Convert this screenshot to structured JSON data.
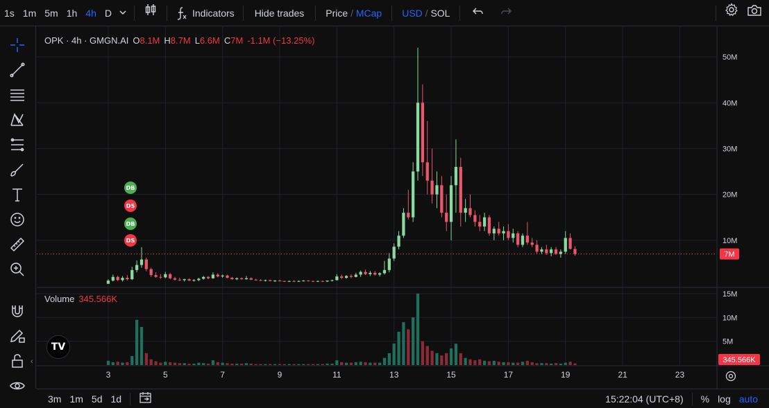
{
  "toolbar": {
    "intervals": [
      "1s",
      "1m",
      "5m",
      "1h",
      "4h",
      "D"
    ],
    "active_interval": "4h",
    "indicators_label": "Indicators",
    "hide_trades_label": "Hide trades",
    "price_label": "Price",
    "price_sep": "/",
    "mcap_label": "MCap",
    "usd_label": "USD",
    "currency_sep": "/",
    "sol_label": "SOL"
  },
  "legend": {
    "symbol": "OPK · 4h · GMGN.AI",
    "o_label": "O",
    "o_value": "8.1M",
    "h_label": "H",
    "h_value": "8.7M",
    "l_label": "L",
    "l_value": "6.6M",
    "c_label": "C",
    "c_value": "7M",
    "change": "-1.1M (−13.25%)"
  },
  "volume_legend": {
    "label": "Volume",
    "value": "345.566K"
  },
  "markers": [
    {
      "label": "DB",
      "color": "#4caf50"
    },
    {
      "label": "DS",
      "color": "#f23645"
    },
    {
      "label": "DB",
      "color": "#4caf50"
    },
    {
      "label": "DS",
      "color": "#f23645"
    }
  ],
  "tv_logo": "TV",
  "bottombar": {
    "ranges": [
      "3m",
      "1m",
      "5d",
      "1d"
    ],
    "time": "15:22:04 (UTC+8)",
    "percent_label": "%",
    "log_label": "log",
    "auto_label": "auto"
  },
  "colors": {
    "up": "#26a69a",
    "up_candle": "#89d9a0",
    "down": "#f23645",
    "down_candle": "#e8576b",
    "grid": "#1e222d",
    "text": "#d1d4dc"
  },
  "chart_data": {
    "type": "candlestick",
    "price_axis": {
      "ticks": [
        10,
        20,
        30,
        40,
        50
      ],
      "tick_labels": [
        "10M",
        "20M",
        "30M",
        "40M",
        "50M"
      ],
      "range": [
        0,
        55
      ],
      "current_price_label": "7M",
      "current_price": 7
    },
    "volume_axis": {
      "ticks": [
        5,
        10,
        15
      ],
      "tick_labels": [
        "5M",
        "10M",
        "15M"
      ],
      "range": [
        0,
        16
      ],
      "current_volume_label": "345.566K"
    },
    "x_axis": {
      "tick_labels": [
        "3",
        "5",
        "7",
        "9",
        "11",
        "13",
        "15",
        "17",
        "19",
        "21",
        "23"
      ],
      "tick_days": [
        3,
        5,
        7,
        9,
        11,
        13,
        15,
        17,
        19,
        21,
        23
      ],
      "range_days": [
        0.5,
        24.3
      ]
    },
    "candles_per_day": 6,
    "start_day": 3.0,
    "candles": [
      [
        0.5,
        1.5,
        0.5,
        1.2,
        0.9
      ],
      [
        1.2,
        2.5,
        1.0,
        2.0,
        0.6
      ],
      [
        2.0,
        2.3,
        1.1,
        1.3,
        0.7
      ],
      [
        1.3,
        2.2,
        1.0,
        1.8,
        0.5
      ],
      [
        1.8,
        2.4,
        1.2,
        1.5,
        0.6
      ],
      [
        1.5,
        4.2,
        1.3,
        3.5,
        1.9
      ],
      [
        3.5,
        5.6,
        3.0,
        4.6,
        9.5
      ],
      [
        4.6,
        8.5,
        4.0,
        5.8,
        8.0
      ],
      [
        5.8,
        6.2,
        3.2,
        3.7,
        2.5
      ],
      [
        3.7,
        4.0,
        2.0,
        2.4,
        1.2
      ],
      [
        2.4,
        3.0,
        1.8,
        2.0,
        0.8
      ],
      [
        2.0,
        2.6,
        1.6,
        1.9,
        0.5
      ],
      [
        1.9,
        3.1,
        1.7,
        2.6,
        0.7
      ],
      [
        2.6,
        2.9,
        1.5,
        1.7,
        0.6
      ],
      [
        1.7,
        2.0,
        1.2,
        1.4,
        0.5
      ],
      [
        1.4,
        1.8,
        1.1,
        1.3,
        0.4
      ],
      [
        1.3,
        1.6,
        1.0,
        1.5,
        0.4
      ],
      [
        1.5,
        1.7,
        1.1,
        1.2,
        0.3
      ],
      [
        1.2,
        1.5,
        1.0,
        1.3,
        0.3
      ],
      [
        1.3,
        1.8,
        1.1,
        1.6,
        0.5
      ],
      [
        1.6,
        2.2,
        1.4,
        2.0,
        0.4
      ],
      [
        2.0,
        2.2,
        1.5,
        1.7,
        0.3
      ],
      [
        1.7,
        3.0,
        1.6,
        2.5,
        1.0
      ],
      [
        2.5,
        2.8,
        1.9,
        2.1,
        0.6
      ],
      [
        2.1,
        2.5,
        1.8,
        2.3,
        0.5
      ],
      [
        2.3,
        2.5,
        1.7,
        1.8,
        0.4
      ],
      [
        1.8,
        2.0,
        1.4,
        1.5,
        0.3
      ],
      [
        1.5,
        1.9,
        1.3,
        1.7,
        0.3
      ],
      [
        1.7,
        1.9,
        1.4,
        1.5,
        0.3
      ],
      [
        1.5,
        2.2,
        1.4,
        1.7,
        0.4
      ],
      [
        1.7,
        1.9,
        1.3,
        1.4,
        0.3
      ],
      [
        1.4,
        1.6,
        1.2,
        1.3,
        0.2
      ],
      [
        1.3,
        1.5,
        1.1,
        1.2,
        0.2
      ],
      [
        1.2,
        1.4,
        1.0,
        1.3,
        0.2
      ],
      [
        1.3,
        1.4,
        1.0,
        1.1,
        0.2
      ],
      [
        1.1,
        1.3,
        0.9,
        1.2,
        0.2
      ],
      [
        1.2,
        1.4,
        1.0,
        1.1,
        0.2
      ],
      [
        1.1,
        1.2,
        0.9,
        1.0,
        0.2
      ],
      [
        1.0,
        1.2,
        0.9,
        1.1,
        0.2
      ],
      [
        1.1,
        1.3,
        0.9,
        1.0,
        0.2
      ],
      [
        1.0,
        1.2,
        0.9,
        1.1,
        0.2
      ],
      [
        1.1,
        1.3,
        1.0,
        1.2,
        0.2
      ],
      [
        1.2,
        1.3,
        1.0,
        1.1,
        0.2
      ],
      [
        1.1,
        1.2,
        0.9,
        1.0,
        0.2
      ],
      [
        1.0,
        1.2,
        0.9,
        1.1,
        0.2
      ],
      [
        1.1,
        1.2,
        0.9,
        1.0,
        0.2
      ],
      [
        1.0,
        1.2,
        0.9,
        1.2,
        0.3
      ],
      [
        1.2,
        1.4,
        1.0,
        1.3,
        0.3
      ],
      [
        1.3,
        2.6,
        1.2,
        2.1,
        1.0
      ],
      [
        2.1,
        2.5,
        1.5,
        1.8,
        0.6
      ],
      [
        1.8,
        2.4,
        1.6,
        2.2,
        0.5
      ],
      [
        2.2,
        2.6,
        1.7,
        2.0,
        0.5
      ],
      [
        2.0,
        2.9,
        1.9,
        2.5,
        0.6
      ],
      [
        2.5,
        3.4,
        2.0,
        3.1,
        0.7
      ],
      [
        3.1,
        3.6,
        2.4,
        2.6,
        0.6
      ],
      [
        2.6,
        3.3,
        2.2,
        2.9,
        0.5
      ],
      [
        2.9,
        3.3,
        2.3,
        2.5,
        0.5
      ],
      [
        2.5,
        3.0,
        2.1,
        2.8,
        0.5
      ],
      [
        2.8,
        5.5,
        2.5,
        3.5,
        1.5
      ],
      [
        3.5,
        7.2,
        3.0,
        6.0,
        2.5
      ],
      [
        6.0,
        9.3,
        5.5,
        8.6,
        4.5
      ],
      [
        8.6,
        12.0,
        8.0,
        11.0,
        7.0
      ],
      [
        11.0,
        17.0,
        10.5,
        16.0,
        9.0
      ],
      [
        16.0,
        21.0,
        14.5,
        15.0,
        7.5
      ],
      [
        15.0,
        27.0,
        14.0,
        25.0,
        10.0
      ],
      [
        25.0,
        52.0,
        23.0,
        40.0,
        15.0
      ],
      [
        40.0,
        44.0,
        24.0,
        27.0,
        5.0
      ],
      [
        27.0,
        36.0,
        20.0,
        23.0,
        4.0
      ],
      [
        23.0,
        30.0,
        18.0,
        20.0,
        3.0
      ],
      [
        20.0,
        25.0,
        17.0,
        22.0,
        2.5
      ],
      [
        22.0,
        24.0,
        15.0,
        16.0,
        2.0
      ],
      [
        16.0,
        20.0,
        12.0,
        14.0,
        2.5
      ],
      [
        14.0,
        24.0,
        10.0,
        22.0,
        3.5
      ],
      [
        22.0,
        32.0,
        16.0,
        26.0,
        4.5
      ],
      [
        26.0,
        28.0,
        13.0,
        16.0,
        2.5
      ],
      [
        16.0,
        19.0,
        14.0,
        17.0,
        1.5
      ],
      [
        17.0,
        20.0,
        15.0,
        15.5,
        1.2
      ],
      [
        15.5,
        16.5,
        13.0,
        14.0,
        1.0
      ],
      [
        14.0,
        15.5,
        12.0,
        13.0,
        1.2
      ],
      [
        13.0,
        16.0,
        12.0,
        15.0,
        0.9
      ],
      [
        15.0,
        15.5,
        11.0,
        11.5,
        0.8
      ],
      [
        11.5,
        13.0,
        10.0,
        12.5,
        0.9
      ],
      [
        12.5,
        14.0,
        11.0,
        11.5,
        0.7
      ],
      [
        11.5,
        13.0,
        10.0,
        12.0,
        0.6
      ],
      [
        12.0,
        13.5,
        10.0,
        10.5,
        0.6
      ],
      [
        10.5,
        12.5,
        9.5,
        11.5,
        0.5
      ],
      [
        11.5,
        12.0,
        8.5,
        9.0,
        0.5
      ],
      [
        9.0,
        11.5,
        8.5,
        11.0,
        0.7
      ],
      [
        11.0,
        14.0,
        9.0,
        9.5,
        0.9
      ],
      [
        9.5,
        10.5,
        8.5,
        9.0,
        0.6
      ],
      [
        9.0,
        10.0,
        7.0,
        7.5,
        0.4
      ],
      [
        7.5,
        8.5,
        7.0,
        8.0,
        0.4
      ],
      [
        8.0,
        9.0,
        6.8,
        7.2,
        0.4
      ],
      [
        7.2,
        8.5,
        6.5,
        8.0,
        0.3
      ],
      [
        8.0,
        8.5,
        6.8,
        7.0,
        0.4
      ],
      [
        7.0,
        8.0,
        6.2,
        7.5,
        0.3
      ],
      [
        7.5,
        12.0,
        7.0,
        10.5,
        0.5
      ],
      [
        10.5,
        11.5,
        8.0,
        8.1,
        0.7
      ],
      [
        8.1,
        8.7,
        6.6,
        7.0,
        0.35
      ]
    ]
  }
}
